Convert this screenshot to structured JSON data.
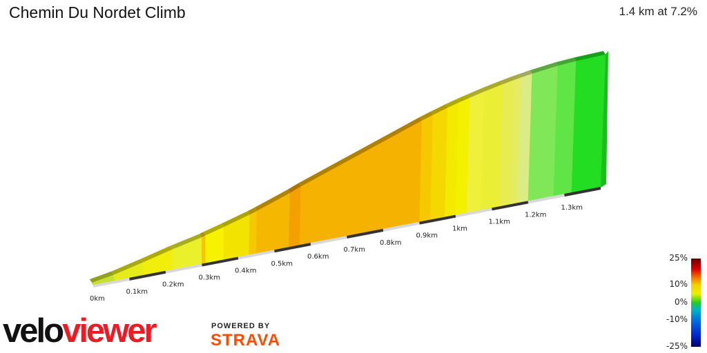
{
  "header": {
    "title": "Chemin Du Nordet Climb",
    "summary": "1.4 km at 7.2%"
  },
  "chart_data": {
    "type": "area",
    "title": "Chemin Du Nordet Climb",
    "xlabel": "",
    "ylabel": "",
    "x_unit": "km",
    "xlim": [
      0,
      1.4
    ],
    "tick_labels": [
      "0km",
      "0.1km",
      "0.2km",
      "0.3km",
      "0.4km",
      "0.5km",
      "0.6km",
      "0.7km",
      "0.8km",
      "0.9km",
      "1km",
      "1.1km",
      "1.2km",
      "1.3km"
    ],
    "tick_values": [
      0,
      0.1,
      0.2,
      0.3,
      0.4,
      0.5,
      0.6,
      0.7,
      0.8,
      0.9,
      1.0,
      1.1,
      1.2,
      1.3
    ],
    "segments": [
      {
        "start": 0.0,
        "end": 0.06,
        "gradient": 5.0,
        "color": "#c8e02a"
      },
      {
        "start": 0.06,
        "end": 0.14,
        "gradient": 7.0,
        "color": "#e6ec1a"
      },
      {
        "start": 0.14,
        "end": 0.22,
        "gradient": 7.5,
        "color": "#f2ee0c"
      },
      {
        "start": 0.22,
        "end": 0.3,
        "gradient": 6.5,
        "color": "#eaf02a"
      },
      {
        "start": 0.3,
        "end": 0.31,
        "gradient": 9.5,
        "color": "#f4c800"
      },
      {
        "start": 0.31,
        "end": 0.36,
        "gradient": 8.0,
        "color": "#f6f200"
      },
      {
        "start": 0.36,
        "end": 0.43,
        "gradient": 8.5,
        "color": "#f2e400"
      },
      {
        "start": 0.43,
        "end": 0.45,
        "gradient": 9.5,
        "color": "#f5c800"
      },
      {
        "start": 0.45,
        "end": 0.54,
        "gradient": 10.5,
        "color": "#f5b700"
      },
      {
        "start": 0.54,
        "end": 0.57,
        "gradient": 12.0,
        "color": "#f3a000"
      },
      {
        "start": 0.57,
        "end": 0.9,
        "gradient": 10.5,
        "color": "#f5b200"
      },
      {
        "start": 0.9,
        "end": 0.93,
        "gradient": 9.5,
        "color": "#f5c800"
      },
      {
        "start": 0.93,
        "end": 0.97,
        "gradient": 9.0,
        "color": "#f5d800"
      },
      {
        "start": 0.97,
        "end": 1.0,
        "gradient": 8.0,
        "color": "#f3ea00"
      },
      {
        "start": 1.0,
        "end": 1.03,
        "gradient": 7.5,
        "color": "#f3f000"
      },
      {
        "start": 1.03,
        "end": 1.07,
        "gradient": 7.0,
        "color": "#eef03a"
      },
      {
        "start": 1.07,
        "end": 1.12,
        "gradient": 6.0,
        "color": "#eaee34"
      },
      {
        "start": 1.12,
        "end": 1.15,
        "gradient": 5.5,
        "color": "#e8ec50"
      },
      {
        "start": 1.15,
        "end": 1.17,
        "gradient": 5.0,
        "color": "#e6ec60"
      },
      {
        "start": 1.17,
        "end": 1.2,
        "gradient": 4.5,
        "color": "#dcec84"
      },
      {
        "start": 1.2,
        "end": 1.27,
        "gradient": 3.5,
        "color": "#80e858"
      },
      {
        "start": 1.27,
        "end": 1.32,
        "gradient": 2.0,
        "color": "#5fe646"
      },
      {
        "start": 1.32,
        "end": 1.4,
        "gradient": 1.0,
        "color": "#22dd22"
      }
    ],
    "legend": {
      "labels": [
        "25%",
        "10%",
        "0%",
        "-10%",
        "-25%"
      ],
      "values": [
        25,
        10,
        0,
        -10,
        -25
      ],
      "placement": "bottom-right"
    },
    "grid": false
  },
  "branding": {
    "logo_part1": "velo",
    "logo_part2": "viewer",
    "powered_by": "POWERED BY",
    "strava": "STRAVA"
  }
}
